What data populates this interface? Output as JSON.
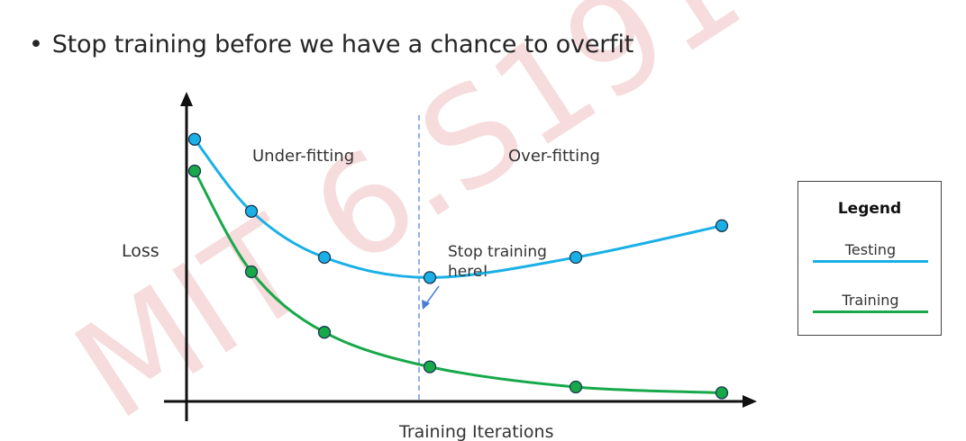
{
  "bullet": {
    "marker": "•",
    "text": "Stop training before we have a chance to overfit"
  },
  "watermark": "MIT 6.S191",
  "chart": {
    "ylabel": "Loss",
    "xlabel": "Training Iterations",
    "region_left": "Under-fitting",
    "region_right": "Over-fitting",
    "annotation_line1": "Stop training",
    "annotation_line2": "here!"
  },
  "legend": {
    "title": "Legend",
    "testing_label": "Testing",
    "training_label": "Training"
  },
  "colors": {
    "testing": "#1ab0e6",
    "training": "#17a84a",
    "axis": "#111111",
    "divider": "#4a7fd6",
    "watermark": "#f4d6d6"
  },
  "chart_data": {
    "type": "line",
    "xlabel": "Training Iterations",
    "ylabel": "Loss",
    "series": [
      {
        "name": "Testing",
        "x": [
          0.05,
          0.4,
          0.85,
          1.5,
          2.4,
          3.3
        ],
        "y": [
          0.91,
          0.66,
          0.5,
          0.43,
          0.5,
          0.61
        ]
      },
      {
        "name": "Training",
        "x": [
          0.05,
          0.4,
          0.85,
          1.5,
          2.4,
          3.3
        ],
        "y": [
          0.8,
          0.45,
          0.24,
          0.12,
          0.05,
          0.03
        ]
      }
    ],
    "marker_stop": {
      "x": 1.5,
      "y": 0.43
    }
  }
}
